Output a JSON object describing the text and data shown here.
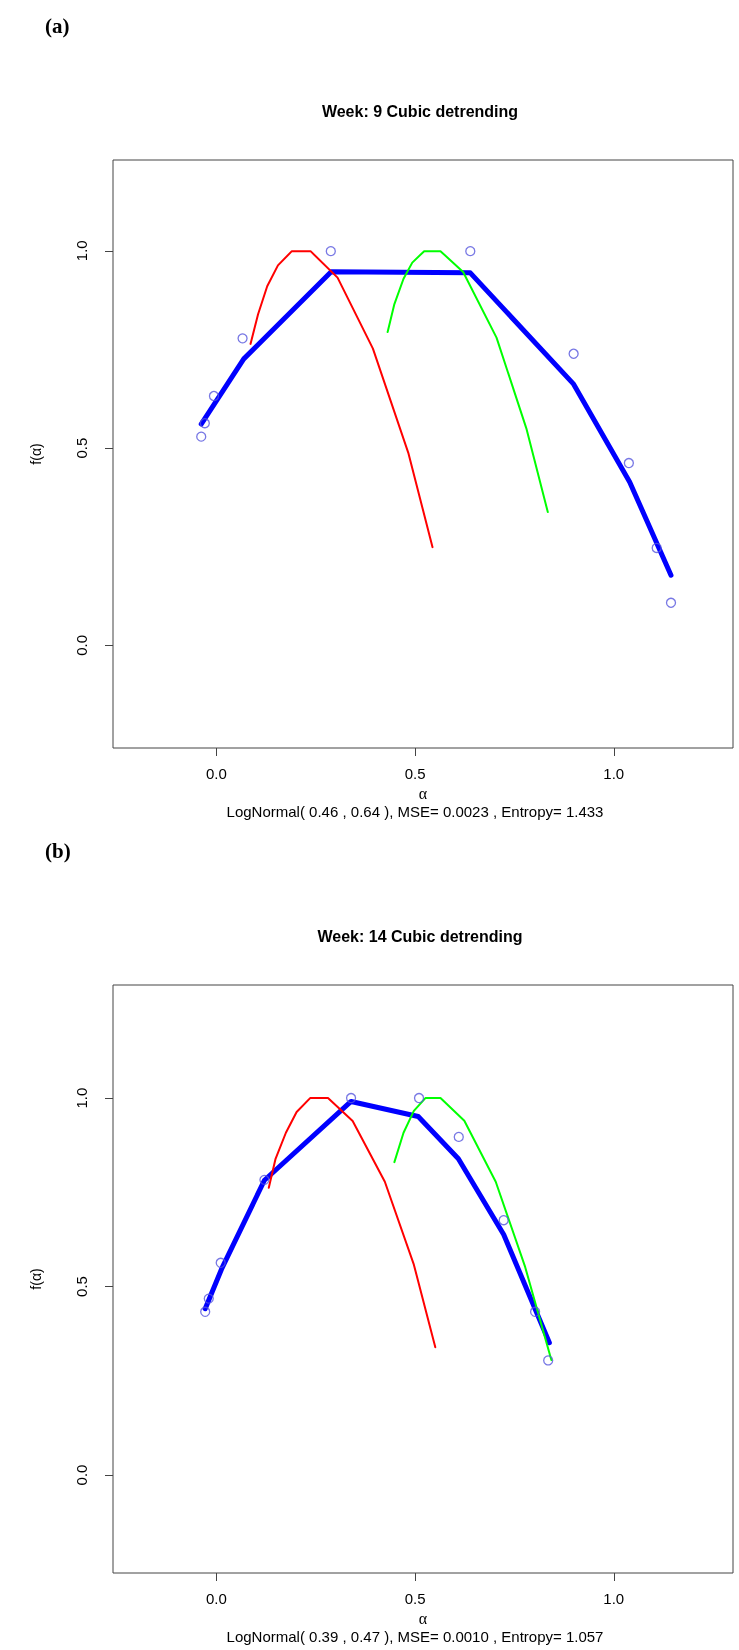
{
  "chart_data": [
    {
      "type": "line",
      "title": "Week: 9 Cubic detrending",
      "subtitle": "(a)",
      "xlabel": "α",
      "ylabel": "f(α)",
      "annotations": [
        "LogNormal( 0.46 , 0.64 ), MSE= 0.0023 , Entropy= 1.433"
      ],
      "xlim": [
        -0.26,
        1.3
      ],
      "ylim": [
        -0.26,
        1.23
      ],
      "xticks": [
        {
          "value": 0,
          "label": "0.0"
        },
        {
          "value": 0.5,
          "label": "0.5"
        },
        {
          "value": 1,
          "label": "1.0"
        }
      ],
      "yticks": [
        {
          "value": 0,
          "label": "0.0"
        },
        {
          "value": 0.5,
          "label": "0.5"
        },
        {
          "value": 1,
          "label": "1.0"
        }
      ],
      "grid": false,
      "marker": "none",
      "series": [
        {
          "type": "line",
          "color": "#0000ff",
          "x": [
            -0.038,
            0.069,
            0.289,
            0.639,
            0.899,
            1.04,
            1.144
          ],
          "values": [
            0.561,
            0.726,
            0.947,
            0.944,
            0.662,
            0.414,
            0.178
          ]
        },
        {
          "type": "scatter",
          "marker": "circle",
          "color": "#5555dd",
          "x": [
            -0.038,
            -0.029,
            -0.006,
            0.066,
            0.288,
            0.639,
            0.899,
            1.038,
            1.108,
            1.144
          ],
          "values": [
            0.529,
            0.563,
            0.632,
            0.778,
            0.999,
            0.999,
            0.739,
            0.462,
            0.247,
            0.108
          ]
        },
        {
          "type": "line",
          "color": "#ff0000",
          "x": [
            0.086,
            0.105,
            0.128,
            0.155,
            0.19,
            0.237,
            0.305,
            0.394,
            0.483,
            0.544
          ],
          "values": [
            0.764,
            0.839,
            0.91,
            0.963,
            0.999,
            0.999,
            0.932,
            0.752,
            0.488,
            0.249
          ]
        },
        {
          "type": "line",
          "color": "#00ff00",
          "x": [
            0.431,
            0.448,
            0.471,
            0.493,
            0.523,
            0.564,
            0.621,
            0.705,
            0.78,
            0.834
          ],
          "values": [
            0.794,
            0.865,
            0.929,
            0.97,
            0.999,
            0.999,
            0.946,
            0.78,
            0.55,
            0.338
          ]
        }
      ]
    },
    {
      "type": "line",
      "title": "Week: 14 Cubic detrending",
      "subtitle": "(b)",
      "xlabel": "α",
      "ylabel": "f(α)",
      "annotations": [
        "LogNormal( 0.39 , 0.47 ), MSE= 0.0010 , Entropy= 1.057"
      ],
      "xlim": [
        -0.26,
        1.3
      ],
      "ylim": [
        -0.26,
        1.3
      ],
      "xticks": [
        {
          "value": 0,
          "label": "0.0"
        },
        {
          "value": 0.5,
          "label": "0.5"
        },
        {
          "value": 1,
          "label": "1.0"
        }
      ],
      "yticks": [
        {
          "value": 0,
          "label": "0.0"
        },
        {
          "value": 0.5,
          "label": "0.5"
        },
        {
          "value": 1,
          "label": "1.0"
        }
      ],
      "grid": false,
      "marker": "none",
      "series": [
        {
          "type": "line",
          "color": "#0000ff",
          "x": [
            -0.028,
            0.013,
            0.121,
            0.339,
            0.508,
            0.609,
            0.723,
            0.838
          ],
          "values": [
            0.441,
            0.546,
            0.782,
            0.991,
            0.951,
            0.839,
            0.638,
            0.351
          ]
        },
        {
          "type": "scatter",
          "marker": "circle",
          "color": "#5555dd",
          "x": [
            -0.028,
            -0.019,
            0.011,
            0.121,
            0.339,
            0.51,
            0.61,
            0.723,
            0.802,
            0.835
          ],
          "values": [
            0.433,
            0.468,
            0.563,
            0.783,
            1.0,
            1.0,
            0.897,
            0.676,
            0.433,
            0.304
          ]
        },
        {
          "type": "line",
          "color": "#ff0000",
          "x": [
            0.132,
            0.149,
            0.175,
            0.202,
            0.236,
            0.281,
            0.343,
            0.424,
            0.497,
            0.551
          ],
          "values": [
            0.762,
            0.839,
            0.908,
            0.963,
            1.0,
            1.0,
            0.939,
            0.778,
            0.558,
            0.339
          ]
        },
        {
          "type": "line",
          "color": "#00ff00",
          "x": [
            0.448,
            0.471,
            0.497,
            0.526,
            0.564,
            0.624,
            0.703,
            0.777,
            0.843
          ],
          "values": [
            0.83,
            0.908,
            0.966,
            1.0,
            1.0,
            0.94,
            0.778,
            0.552,
            0.305
          ]
        }
      ]
    }
  ]
}
